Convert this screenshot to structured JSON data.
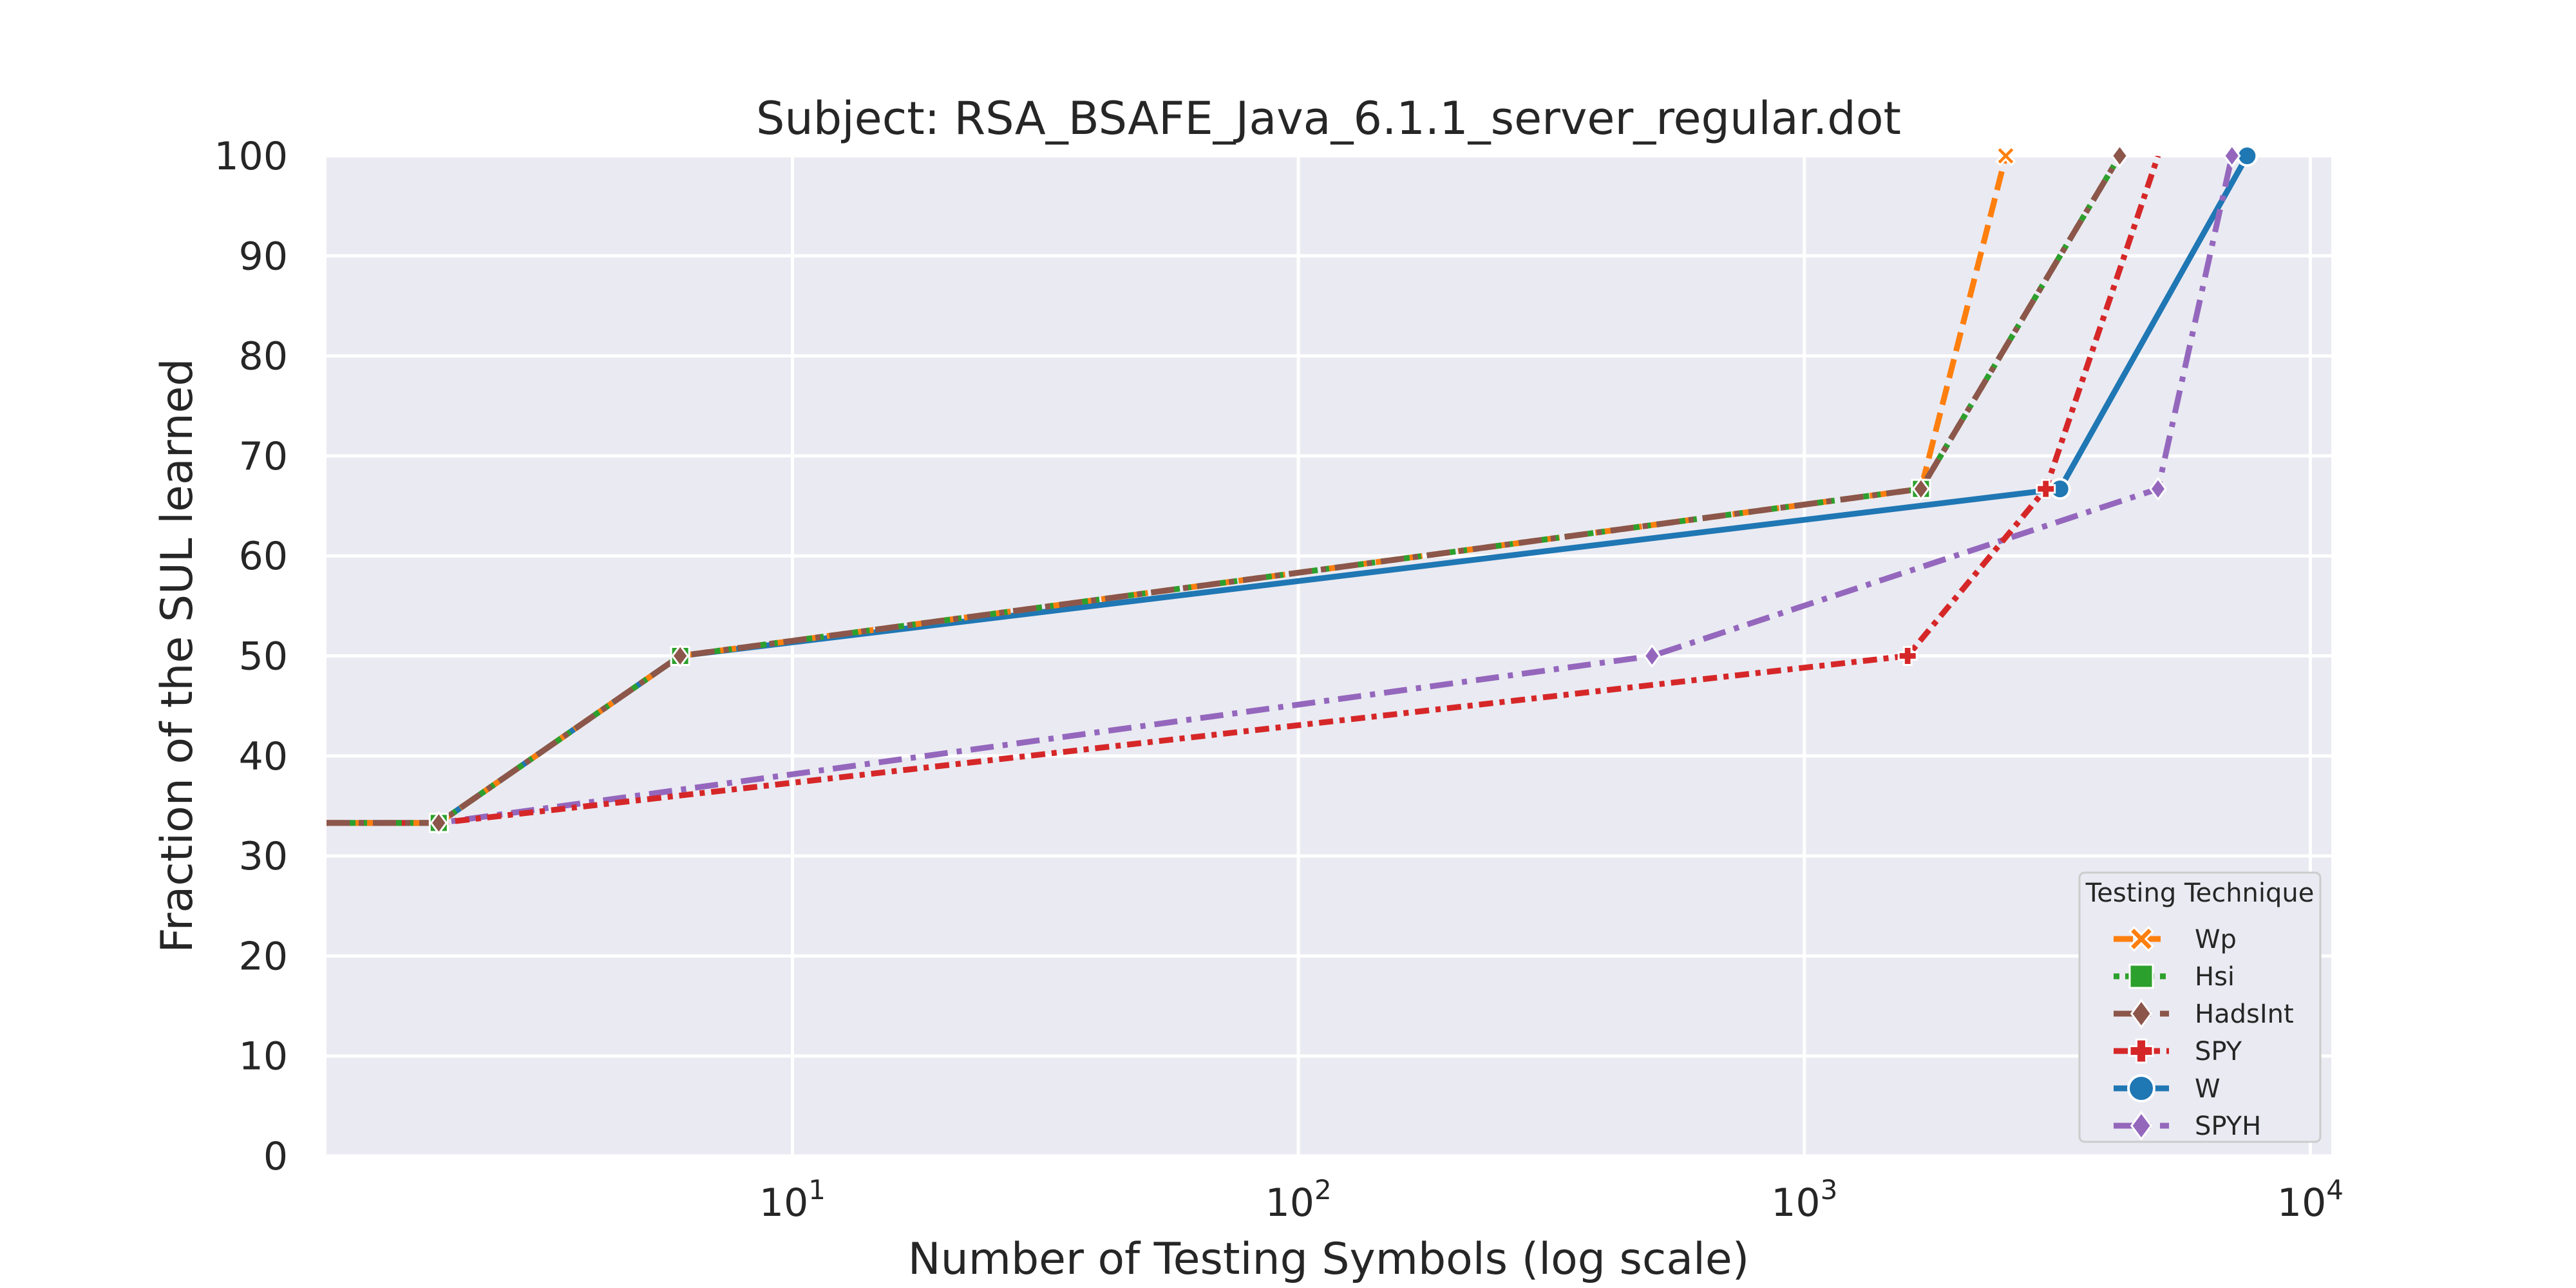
{
  "chart_data": {
    "type": "line",
    "title": "Subject: RSA_BSAFE_Java_6.1.1_server_regular.dot",
    "xlabel": "Number of Testing Symbols (log scale)",
    "ylabel": "Fraction of the SUL learned",
    "xscale": "log",
    "xlim": [
      1.2,
      11000
    ],
    "ylim": [
      0,
      100
    ],
    "yticks": [
      0,
      10,
      20,
      30,
      40,
      50,
      60,
      70,
      80,
      90,
      100
    ],
    "xticks": [
      {
        "value": 10,
        "base": "10",
        "exp": "1"
      },
      {
        "value": 100,
        "base": "10",
        "exp": "2"
      },
      {
        "value": 1000,
        "base": "10",
        "exp": "3"
      },
      {
        "value": 10000,
        "base": "10",
        "exp": "4"
      }
    ],
    "grid": true,
    "legend": {
      "title": "Testing Technique",
      "position": "lower-right"
    },
    "series": [
      {
        "name": "W",
        "color": "#1f77b4",
        "dash": "solid",
        "marker": "circle",
        "x": [
          1.2,
          2,
          6,
          3200,
          7500
        ],
        "y": [
          33.3,
          33.3,
          50,
          66.7,
          100
        ],
        "markerIdx": [
          3,
          4
        ]
      },
      {
        "name": "SPYH",
        "color": "#9467bd",
        "dash": "dashdot",
        "marker": "diamond",
        "x": [
          1.2,
          2,
          500,
          5000,
          7000
        ],
        "y": [
          33.3,
          33.3,
          50,
          66.7,
          100
        ],
        "markerIdx": [
          2,
          3,
          4
        ]
      },
      {
        "name": "SPY",
        "color": "#d62728",
        "dash": "densedashdot",
        "marker": "plus",
        "x": [
          1.2,
          2,
          1600,
          3000,
          5000
        ],
        "y": [
          33.3,
          33.3,
          50,
          66.7,
          100
        ],
        "markerIdx": [
          2,
          3
        ]
      },
      {
        "name": "Wp",
        "color": "#ff7f0e",
        "dash": "dashed",
        "marker": "x",
        "x": [
          1.2,
          2,
          6,
          1700,
          2500
        ],
        "y": [
          33.3,
          33.3,
          50,
          66.7,
          100
        ],
        "markerIdx": [
          1,
          2,
          3,
          4
        ]
      },
      {
        "name": "Hsi",
        "color": "#2ca02c",
        "dash": "dotted",
        "marker": "square",
        "x": [
          1.2,
          2,
          6,
          1700,
          4200
        ],
        "y": [
          33.3,
          33.3,
          50,
          66.7,
          100
        ],
        "markerIdx": [
          1,
          2,
          3
        ]
      },
      {
        "name": "HadsInt",
        "color": "#8c564b",
        "dash": "dashdot",
        "marker": "diamond",
        "x": [
          1.2,
          2,
          6,
          1700,
          4200
        ],
        "y": [
          33.3,
          33.3,
          50,
          66.7,
          100
        ],
        "markerIdx": [
          1,
          2,
          3,
          4
        ]
      }
    ],
    "legend_order": [
      "Wp",
      "Hsi",
      "HadsInt",
      "SPY",
      "W",
      "SPYH"
    ]
  }
}
